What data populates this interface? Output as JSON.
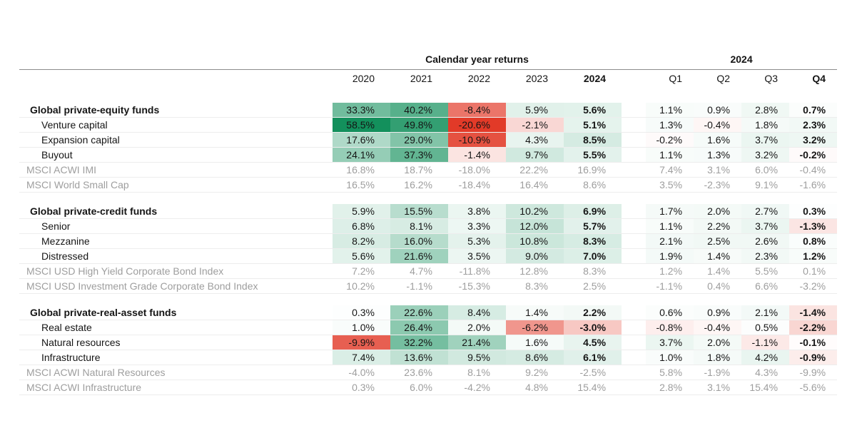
{
  "chart_data": {
    "type": "table",
    "subtype": "heatmap-table",
    "column_group_labels": {
      "years": "Calendar year returns",
      "quarters": "2024"
    },
    "year_columns": [
      "2020",
      "2021",
      "2022",
      "2023",
      "2024"
    ],
    "quarter_columns": [
      "Q1",
      "Q2",
      "Q3",
      "Q4"
    ],
    "value_suffix": "%",
    "heatmap": {
      "positive_color": "#13905c",
      "negative_color": "#e23a28",
      "positive_domain": 58.5,
      "negative_domain": 12.5,
      "gamma": 0.9,
      "benchmark_rows_unshaded": true
    },
    "colors": {
      "text": "#151515",
      "benchmark_text": "#9e9e9e",
      "header_rule": "#8c8c8c",
      "row_border": "#ededed",
      "bg": "#ffffff"
    },
    "sections": [
      {
        "rows": [
          {
            "label": "Global private-equity funds",
            "type": "section",
            "years": [
              33.3,
              40.2,
              -8.4,
              5.9,
              5.6
            ],
            "quarters": [
              1.1,
              0.9,
              2.8,
              0.7
            ]
          },
          {
            "label": "Venture capital",
            "type": "item",
            "years": [
              58.5,
              49.8,
              -20.6,
              -2.1,
              5.1
            ],
            "quarters": [
              1.3,
              -0.4,
              1.8,
              2.3
            ]
          },
          {
            "label": "Expansion capital",
            "type": "item",
            "years": [
              17.6,
              29.0,
              -10.9,
              4.3,
              8.5
            ],
            "quarters": [
              -0.2,
              1.6,
              3.7,
              3.2
            ]
          },
          {
            "label": "Buyout",
            "type": "item",
            "years": [
              24.1,
              37.3,
              -1.4,
              9.7,
              5.5
            ],
            "quarters": [
              1.1,
              1.3,
              3.2,
              -0.2
            ]
          },
          {
            "label": "MSCI ACWI IMI",
            "type": "benchmark",
            "years": [
              16.8,
              18.7,
              -18.0,
              22.2,
              16.9
            ],
            "quarters": [
              7.4,
              3.1,
              6.0,
              -0.4
            ]
          },
          {
            "label": "MSCI World Small Cap",
            "type": "benchmark",
            "years": [
              16.5,
              16.2,
              -18.4,
              16.4,
              8.6
            ],
            "quarters": [
              3.5,
              -2.3,
              9.1,
              -1.6
            ]
          }
        ]
      },
      {
        "rows": [
          {
            "label": "Global private-credit funds",
            "type": "section",
            "years": [
              5.9,
              15.5,
              3.8,
              10.2,
              6.9
            ],
            "quarters": [
              1.7,
              2.0,
              2.7,
              0.3
            ]
          },
          {
            "label": "Senior",
            "type": "item",
            "years": [
              6.8,
              8.1,
              3.3,
              12.0,
              5.7
            ],
            "quarters": [
              1.1,
              2.2,
              3.7,
              -1.3
            ]
          },
          {
            "label": "Mezzanine",
            "type": "item",
            "years": [
              8.2,
              16.0,
              5.3,
              10.8,
              8.3
            ],
            "quarters": [
              2.1,
              2.5,
              2.6,
              0.8
            ]
          },
          {
            "label": "Distressed",
            "type": "item",
            "years": [
              5.6,
              21.6,
              3.5,
              9.0,
              7.0
            ],
            "quarters": [
              1.9,
              1.4,
              2.3,
              1.2
            ]
          },
          {
            "label": "MSCI USD High Yield Corporate Bond Index",
            "type": "benchmark",
            "years": [
              7.2,
              4.7,
              -11.8,
              12.8,
              8.3
            ],
            "quarters": [
              1.2,
              1.4,
              5.5,
              0.1
            ]
          },
          {
            "label": "MSCI USD Investment Grade Corporate Bond Index",
            "type": "benchmark",
            "years": [
              10.2,
              -1.1,
              -15.3,
              8.3,
              2.5
            ],
            "quarters": [
              -1.1,
              0.4,
              6.6,
              -3.2
            ]
          }
        ]
      },
      {
        "rows": [
          {
            "label": "Global private-real-asset funds",
            "type": "section",
            "years": [
              0.3,
              22.6,
              8.4,
              1.4,
              2.2
            ],
            "quarters": [
              0.6,
              0.9,
              2.1,
              -1.4
            ]
          },
          {
            "label": "Real estate",
            "type": "item",
            "years": [
              1.0,
              26.4,
              2.0,
              -6.2,
              -3.0
            ],
            "quarters": [
              -0.8,
              -0.4,
              0.5,
              -2.2
            ]
          },
          {
            "label": "Natural resources",
            "type": "item",
            "years": [
              -9.9,
              32.2,
              21.4,
              1.6,
              4.5
            ],
            "quarters": [
              3.7,
              2.0,
              -1.1,
              -0.1
            ]
          },
          {
            "label": "Infrastructure",
            "type": "item",
            "years": [
              7.4,
              13.6,
              9.5,
              8.6,
              6.1
            ],
            "quarters": [
              1.0,
              1.8,
              4.2,
              -0.9
            ]
          },
          {
            "label": "MSCI ACWI Natural Resources",
            "type": "benchmark",
            "years": [
              -4.0,
              23.6,
              8.1,
              9.2,
              -2.5
            ],
            "quarters": [
              5.8,
              -1.9,
              4.3,
              -9.9
            ]
          },
          {
            "label": "MSCI ACWI Infrastructure",
            "type": "benchmark",
            "years": [
              0.3,
              6.0,
              -4.2,
              4.8,
              15.4
            ],
            "quarters": [
              2.8,
              3.1,
              15.4,
              -5.6
            ]
          }
        ]
      }
    ]
  }
}
